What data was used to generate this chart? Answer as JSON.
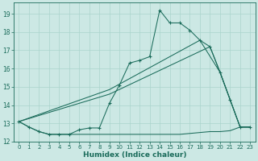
{
  "xlabel": "Humidex (Indice chaleur)",
  "bg_color": "#cce8e4",
  "grid_color": "#aad4cc",
  "line_color": "#1a6b5a",
  "xlim": [
    -0.5,
    23.5
  ],
  "ylim": [
    12,
    19.6
  ],
  "yticks": [
    12,
    13,
    14,
    15,
    16,
    17,
    18,
    19
  ],
  "xticks": [
    0,
    1,
    2,
    3,
    4,
    5,
    6,
    7,
    8,
    9,
    10,
    11,
    12,
    13,
    14,
    15,
    16,
    17,
    18,
    19,
    20,
    21,
    22,
    23
  ],
  "line1_x": [
    0,
    1,
    2,
    3,
    4,
    5,
    6,
    7,
    8,
    9,
    10,
    11,
    12,
    13,
    14,
    15,
    16,
    17,
    18,
    19,
    20,
    21,
    22,
    23
  ],
  "line1_y": [
    13.1,
    12.8,
    12.55,
    12.4,
    12.4,
    12.4,
    12.65,
    12.75,
    12.75,
    14.1,
    15.1,
    16.3,
    16.45,
    16.65,
    19.2,
    18.5,
    18.5,
    18.1,
    17.55,
    17.2,
    15.8,
    14.3,
    12.8,
    12.8
  ],
  "line_flat_x": [
    0,
    1,
    2,
    3,
    4,
    5,
    6,
    7,
    8,
    9,
    10,
    11,
    12,
    13,
    14,
    15,
    16,
    17,
    18,
    19,
    20,
    21,
    22,
    23
  ],
  "line_flat_y": [
    13.1,
    12.8,
    12.55,
    12.4,
    12.4,
    12.4,
    12.4,
    12.4,
    12.4,
    12.4,
    12.4,
    12.4,
    12.4,
    12.4,
    12.4,
    12.4,
    12.4,
    12.45,
    12.5,
    12.55,
    12.55,
    12.6,
    12.8,
    12.8
  ],
  "diag1_x": [
    0,
    9,
    19,
    20,
    22,
    23
  ],
  "diag1_y": [
    13.1,
    14.6,
    17.2,
    15.8,
    12.8,
    12.8
  ],
  "diag2_x": [
    0,
    9,
    18,
    20,
    22,
    23
  ],
  "diag2_y": [
    13.1,
    14.85,
    17.55,
    15.8,
    12.8,
    12.8
  ]
}
